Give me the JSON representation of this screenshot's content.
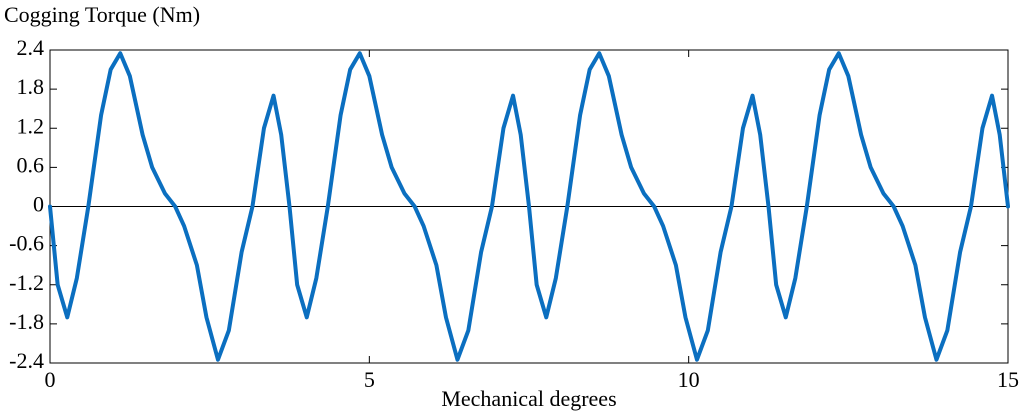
{
  "chart_data": {
    "type": "line",
    "title": "Cogging Torque (Nm)",
    "x_label": "Mechanical degrees",
    "x": [
      0,
      0.12,
      0.27,
      0.42,
      0.6,
      0.8,
      0.95,
      1.1,
      1.25,
      1.45,
      1.6,
      1.8,
      1.96,
      2.1,
      2.3,
      2.45,
      2.63,
      2.8,
      3.0,
      3.17,
      3.35,
      3.5,
      3.62,
      3.75,
      3.87,
      4.02,
      4.17,
      4.35,
      4.55,
      4.7,
      4.85,
      5.0,
      5.2,
      5.35,
      5.55,
      5.71,
      5.85,
      6.05,
      6.2,
      6.38,
      6.55,
      6.75,
      6.92,
      7.1,
      7.25,
      7.37,
      7.5,
      7.62,
      7.77,
      7.92,
      8.1,
      8.3,
      8.45,
      8.6,
      8.75,
      8.95,
      9.1,
      9.3,
      9.46,
      9.6,
      9.8,
      9.95,
      10.13,
      10.3,
      10.5,
      10.67,
      10.85,
      11.0,
      11.12,
      11.25,
      11.37,
      11.52,
      11.67,
      11.85,
      12.05,
      12.2,
      12.35,
      12.5,
      12.7,
      12.85,
      13.05,
      13.21,
      13.35,
      13.55,
      13.7,
      13.88,
      14.05,
      14.25,
      14.42,
      14.6,
      14.75,
      14.87,
      15.0
    ],
    "series": [
      {
        "name": "Cogging Torque",
        "color": "#0b6fc0",
        "values": [
          0,
          -1.2,
          -1.7,
          -1.1,
          0,
          1.4,
          2.1,
          2.35,
          2.0,
          1.1,
          0.6,
          0.2,
          0,
          -0.3,
          -0.9,
          -1.7,
          -2.35,
          -1.9,
          -0.7,
          0,
          1.2,
          1.7,
          1.1,
          0,
          -1.2,
          -1.7,
          -1.1,
          0,
          1.4,
          2.1,
          2.35,
          2.0,
          1.1,
          0.6,
          0.2,
          0,
          -0.3,
          -0.9,
          -1.7,
          -2.35,
          -1.9,
          -0.7,
          0,
          1.2,
          1.7,
          1.1,
          0,
          -1.2,
          -1.7,
          -1.1,
          0,
          1.4,
          2.1,
          2.35,
          2.0,
          1.1,
          0.6,
          0.2,
          0,
          -0.3,
          -0.9,
          -1.7,
          -2.35,
          -1.9,
          -0.7,
          0,
          1.2,
          1.7,
          1.1,
          0,
          -1.2,
          -1.7,
          -1.1,
          0,
          1.4,
          2.1,
          2.35,
          2.0,
          1.1,
          0.6,
          0.2,
          0,
          -0.3,
          -0.9,
          -1.7,
          -2.35,
          -1.9,
          -0.7,
          0,
          1.2,
          1.7,
          1.1,
          0
        ]
      }
    ],
    "xlim": [
      0,
      15
    ],
    "xticks": [
      0,
      5,
      10,
      15
    ],
    "ylim": [
      -2.4,
      2.4
    ],
    "yticks": [
      2.4,
      1.8,
      1.2,
      0.6,
      0,
      -0.6,
      -1.2,
      -1.8,
      -2.4
    ],
    "zero_line": true
  }
}
